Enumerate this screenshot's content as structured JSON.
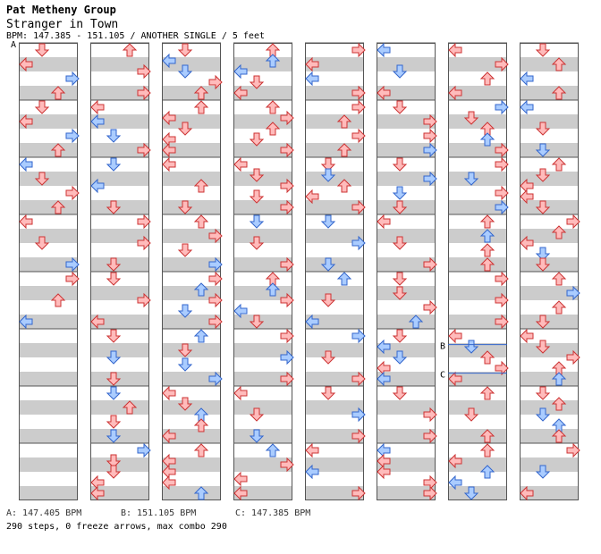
{
  "song": {
    "artist": "Pat Metheny Group",
    "title": "Stranger in Town",
    "info": "BPM: 147.385 - 151.105 / ANOTHER SINGLE / 5 feet"
  },
  "markers": [
    {
      "label": "A",
      "column": 0,
      "beat": 0
    },
    {
      "label": "B",
      "column": 6,
      "beat": 21.1
    },
    {
      "label": "C",
      "column": 6,
      "beat": 23.1
    }
  ],
  "footer": {
    "bpm_a": "A: 147.405 BPM",
    "bpm_b": "B: 151.105 BPM",
    "bpm_c": "C: 147.385 BPM",
    "stats": "290 steps, 0 freeze arrows, max combo 290"
  },
  "colors": {
    "red_fill": "#ffbbbb",
    "red_stroke": "#cc3333",
    "blue_fill": "#aaccff",
    "blue_stroke": "#3366cc",
    "stripe": "#cccccc"
  },
  "columns": [
    [
      [
        {
          "x": 0.4,
          "t": "d",
          "c": "r"
        },
        {
          "x": 0.2,
          "t": "l",
          "c": "r"
        },
        {
          "x": 0.8,
          "t": "r",
          "c": "b"
        },
        {
          "x": 0.5,
          "t": "u",
          "c": "r"
        }
      ],
      [
        {
          "x": 0.5,
          "t": "d",
          "c": "r"
        },
        {
          "x": 0.3,
          "t": "l",
          "c": "r"
        },
        {
          "x": 0.8,
          "t": "r",
          "c": "b"
        },
        {
          "x": 0.5,
          "t": "u",
          "c": "r"
        }
      ],
      [
        {
          "x": 0.2,
          "t": "l",
          "c": "b"
        },
        {
          "x": 0.6,
          "t": "d",
          "c": "r"
        },
        {
          "x": 0.8,
          "t": "r",
          "c": "r"
        },
        {
          "x": 0.5,
          "t": "u",
          "c": "r"
        }
      ],
      [
        {
          "x": 0.2,
          "t": "l",
          "c": "r"
        },
        {
          "x": 0.5,
          "t": "d",
          "c": "r"
        },
        {
          "x": 0.8,
          "t": "r",
          "c": "b"
        }
      ],
      [
        {
          "x": 0.8,
          "t": "r",
          "c": "r"
        },
        {
          "x": 0.5,
          "t": "u",
          "c": "r"
        },
        {
          "x": 0.2,
          "t": "l",
          "c": "b"
        }
      ]
    ]
  ]
}
